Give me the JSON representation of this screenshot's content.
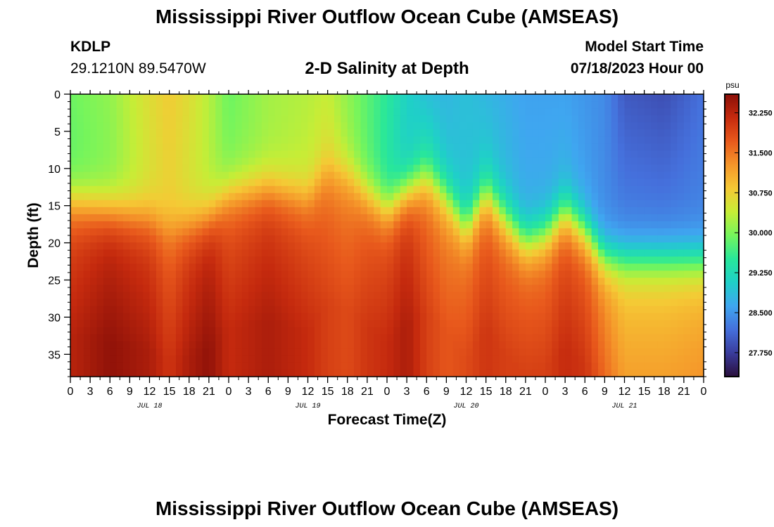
{
  "header": {
    "title": "Mississippi River Outflow Ocean Cube (AMSEAS)",
    "station": "KDLP",
    "coords": "29.1210N  89.5470W",
    "model_start_label": "Model Start Time",
    "model_start_value": "07/18/2023 Hour 00"
  },
  "footer": {
    "title": "Mississippi River Outflow Ocean Cube (AMSEAS)"
  },
  "chart_data": {
    "type": "heatmap",
    "title": "2-D Salinity at Depth",
    "xlabel": "Forecast Time(Z)",
    "ylabel": "Depth (ft)",
    "x_ticks": [
      "0",
      "3",
      "6",
      "9",
      "12",
      "15",
      "18",
      "21",
      "0",
      "3",
      "6",
      "9",
      "12",
      "15",
      "18",
      "21",
      "0",
      "3",
      "6",
      "9",
      "12",
      "15",
      "18",
      "21",
      "0",
      "3",
      "6",
      "9",
      "12",
      "15",
      "18",
      "21",
      "0"
    ],
    "day_labels": [
      "JUL 18",
      "JUL 19",
      "JUL 20",
      "JUL 21"
    ],
    "y_ticks": [
      0,
      5,
      10,
      15,
      20,
      25,
      30,
      35
    ],
    "ylim": [
      0,
      38
    ],
    "x_hours_range": [
      0,
      96
    ],
    "colorbar": {
      "unit": "psu",
      "ticks": [
        32.25,
        31.5,
        30.75,
        30.0,
        29.25,
        28.5,
        27.75
      ],
      "tick_labels": [
        "32.250",
        "31.500",
        "30.750",
        "30.000",
        "29.250",
        "28.500",
        "27.750"
      ],
      "range": [
        27.3,
        32.6
      ],
      "colors": [
        "#2a0f3c",
        "#3a3c9c",
        "#4570dc",
        "#3fa6f0",
        "#1fd0c8",
        "#28e79a",
        "#75f55c",
        "#c7ed36",
        "#f5c935",
        "#f5962a",
        "#e8591c",
        "#c52a0e",
        "#8a0f08"
      ]
    },
    "grid": false,
    "depth_profile": {
      "hours": [
        0,
        6,
        12,
        15,
        18,
        21,
        24,
        30,
        36,
        39,
        42,
        45,
        48,
        51,
        54,
        57,
        60,
        63,
        66,
        69,
        72,
        75,
        78,
        81,
        84,
        90,
        96
      ],
      "surface_psu": [
        29.9,
        30.1,
        30.6,
        30.8,
        30.6,
        30.3,
        29.9,
        30.2,
        30.3,
        30.4,
        30.1,
        29.8,
        29.5,
        29.1,
        28.9,
        28.8,
        28.9,
        28.8,
        28.7,
        28.6,
        28.6,
        28.6,
        28.5,
        28.4,
        28.0,
        27.9,
        28.2
      ],
      "upper_psu": [
        29.8,
        30.0,
        30.5,
        30.7,
        30.5,
        30.3,
        30.0,
        30.2,
        30.4,
        30.6,
        30.2,
        29.8,
        29.4,
        29.0,
        29.4,
        29.0,
        28.9,
        29.1,
        28.9,
        28.7,
        28.7,
        28.8,
        28.6,
        28.4,
        28.4,
        28.4,
        28.4
      ],
      "pycnocline_depth_ft": [
        14.5,
        15.5,
        16.5,
        18.0,
        17.5,
        16.5,
        13.5,
        12.5,
        14.0,
        10.5,
        11.0,
        13.5,
        15.5,
        13.0,
        11.5,
        14.0,
        18.0,
        13.5,
        17.0,
        20.0,
        19.0,
        16.0,
        18.5,
        22.0,
        22.5,
        22.5,
        22.5
      ],
      "deep_psu": [
        31.9,
        32.2,
        32.0,
        31.7,
        32.0,
        32.2,
        31.8,
        32.0,
        31.8,
        31.6,
        31.5,
        31.7,
        31.8,
        32.0,
        31.6,
        31.4,
        31.5,
        31.7,
        31.6,
        31.6,
        31.6,
        31.8,
        31.7,
        31.3,
        30.9,
        30.9,
        31.0
      ]
    }
  }
}
